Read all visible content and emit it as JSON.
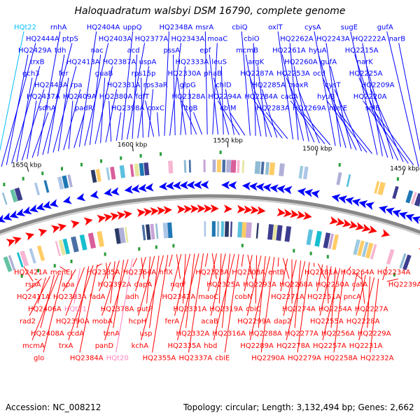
{
  "title": "Haloquadratum walsbyi DSM 16790, complete genome",
  "footer": {
    "accession": "Accession: NC_008212",
    "summary": "Topology: circular; Length: 3,132,494 bp; Genes: 2,662"
  },
  "colors": {
    "forward": "#0000ff",
    "reverse": "#ff0000",
    "trna_forward": "#00bfff",
    "trna_reverse": "#ff80c0",
    "backbone": "#888888"
  },
  "kbp_ticks": [
    "1650 kbp",
    "1600 kbp",
    "1550 kbp",
    "1500 kbp",
    "1450 kbp"
  ],
  "forward_labels": [
    {
      "text": "HQt22",
      "kind": "trna"
    },
    {
      "text": "HQ2444A"
    },
    {
      "text": "HQ2429A"
    },
    {
      "text": "trxB"
    },
    {
      "text": "gch3"
    },
    {
      "text": "HQ2443A"
    },
    {
      "text": "HQ2437A"
    },
    {
      "text": "sdhA"
    },
    {
      "text": "rnhA"
    },
    {
      "text": "ptpS"
    },
    {
      "text": "tdh"
    },
    {
      "text": "HQ2413A"
    },
    {
      "text": "fer"
    },
    {
      "text": "rpa"
    },
    {
      "text": "HQ2409A"
    },
    {
      "text": "padR"
    },
    {
      "text": "HQ2404A"
    },
    {
      "text": "HQ2403A"
    },
    {
      "text": "nac"
    },
    {
      "text": "HQ2387A"
    },
    {
      "text": "guaB"
    },
    {
      "text": "HQ2381A"
    },
    {
      "text": "HQ2380A"
    },
    {
      "text": "HQ2398A"
    },
    {
      "text": "uppQ"
    },
    {
      "text": "HQ2377A"
    },
    {
      "text": "acd"
    },
    {
      "text": "uspA"
    },
    {
      "text": "rps15p"
    },
    {
      "text": "rps3aR"
    },
    {
      "text": "fdfT"
    },
    {
      "text": "coxC"
    },
    {
      "text": "HQ2348A"
    },
    {
      "text": "HQ2343A"
    },
    {
      "text": "pssA"
    },
    {
      "text": "HQ2333A"
    },
    {
      "text": "HQ2330A"
    },
    {
      "text": "glpG"
    },
    {
      "text": "HQ2328A"
    },
    {
      "text": "ltgB"
    },
    {
      "text": "msrA"
    },
    {
      "text": "moaC"
    },
    {
      "text": "epf"
    },
    {
      "text": "leuS"
    },
    {
      "text": "phaB"
    },
    {
      "text": "chlD"
    },
    {
      "text": "HQ2294A"
    },
    {
      "text": "cbiM"
    },
    {
      "text": "cbiQ"
    },
    {
      "text": "cbiO"
    },
    {
      "text": "mcmB"
    },
    {
      "text": "argK"
    },
    {
      "text": "HQ2287A"
    },
    {
      "text": "HQ2285A"
    },
    {
      "text": "HQ2284A"
    },
    {
      "text": "HQ2283A"
    },
    {
      "text": "oxlT"
    },
    {
      "text": "HQ2262A"
    },
    {
      "text": "HQ2261A"
    },
    {
      "text": "HQ2260A"
    },
    {
      "text": "HQ2253A"
    },
    {
      "text": "moxR"
    },
    {
      "text": "cadA"
    },
    {
      "text": "HQ2269A"
    },
    {
      "text": "cysA"
    },
    {
      "text": "HQ2243A"
    },
    {
      "text": "hyuA"
    },
    {
      "text": "gufA"
    },
    {
      "text": "ocd"
    },
    {
      "text": "cysT"
    },
    {
      "text": "hyuB"
    },
    {
      "text": "metE"
    },
    {
      "text": "sugE"
    },
    {
      "text": "HQ2222A"
    },
    {
      "text": "HQ2215A"
    },
    {
      "text": "narK"
    },
    {
      "text": "HQ2225A"
    },
    {
      "text": "HQ2209A"
    },
    {
      "text": "HQ2220A"
    },
    {
      "text": "sqlE"
    },
    {
      "text": "gufA"
    },
    {
      "text": "narB"
    }
  ],
  "reverse_labels": [
    {
      "text": "HQ2421A"
    },
    {
      "text": "rspA"
    },
    {
      "text": "HQ2411A"
    },
    {
      "text": "HQ2406A"
    },
    {
      "text": "rad2"
    },
    {
      "text": "HQ2408A"
    },
    {
      "text": "mcmA"
    },
    {
      "text": "glo"
    },
    {
      "text": "menE"
    },
    {
      "text": "apa"
    },
    {
      "text": "HQ2383A"
    },
    {
      "text": "HQt21",
      "kind": "trna"
    },
    {
      "text": "HQ2390A"
    },
    {
      "text": "ccdA"
    },
    {
      "text": "trxA"
    },
    {
      "text": "HQ2384A"
    },
    {
      "text": "HQ2385A"
    },
    {
      "text": "HQ2392A"
    },
    {
      "text": "fadA"
    },
    {
      "text": "HQ2378A"
    },
    {
      "text": "mobA"
    },
    {
      "text": "tenA"
    },
    {
      "text": "panD"
    },
    {
      "text": "HQt20",
      "kind": "trna"
    },
    {
      "text": "HQ2364A"
    },
    {
      "text": "dapA"
    },
    {
      "text": "adh"
    },
    {
      "text": "putP"
    },
    {
      "text": "hcpH"
    },
    {
      "text": "usp"
    },
    {
      "text": "kchA"
    },
    {
      "text": "HQ2355A"
    },
    {
      "text": "hflX"
    },
    {
      "text": "nqrF"
    },
    {
      "text": "HQ2342A"
    },
    {
      "text": "HQ2331A"
    },
    {
      "text": "ferA"
    },
    {
      "text": "HQ2332A"
    },
    {
      "text": "HQ2335A"
    },
    {
      "text": "HQ2337A"
    },
    {
      "text": "HQ2323A"
    },
    {
      "text": "HQ2325A"
    },
    {
      "text": "maoC"
    },
    {
      "text": "HQ2319A"
    },
    {
      "text": "acaB"
    },
    {
      "text": "HQ2316A"
    },
    {
      "text": "hbd"
    },
    {
      "text": "cbiE"
    },
    {
      "text": "HQ2308A"
    },
    {
      "text": "HQ2293A"
    },
    {
      "text": "cobN"
    },
    {
      "text": "cbiC"
    },
    {
      "text": "HQ2299A"
    },
    {
      "text": "HQ2288A"
    },
    {
      "text": "HQ2289A"
    },
    {
      "text": "HQ2290A"
    },
    {
      "text": "entB"
    },
    {
      "text": "HQ2268A"
    },
    {
      "text": "HQ2271A"
    },
    {
      "text": "HQ2274A"
    },
    {
      "text": "dap2"
    },
    {
      "text": "HQ2277A"
    },
    {
      "text": "HQ2278A"
    },
    {
      "text": "HQ2279A"
    },
    {
      "text": "HQ2281A"
    },
    {
      "text": "HQ2250A"
    },
    {
      "text": "HQ2251A"
    },
    {
      "text": "HQ2254A"
    },
    {
      "text": "HQ2255A"
    },
    {
      "text": "HQ2256A"
    },
    {
      "text": "HQ2257A"
    },
    {
      "text": "HQ2258A"
    },
    {
      "text": "HQ2264A"
    },
    {
      "text": "catA"
    },
    {
      "text": "pncA"
    },
    {
      "text": "HQ2227A"
    },
    {
      "text": "HQ2228A"
    },
    {
      "text": "HQ2229A"
    },
    {
      "text": "HQ2231A"
    },
    {
      "text": "HQ2232A"
    },
    {
      "text": "HQ2234A"
    },
    {
      "text": "HQ2239A"
    }
  ]
}
